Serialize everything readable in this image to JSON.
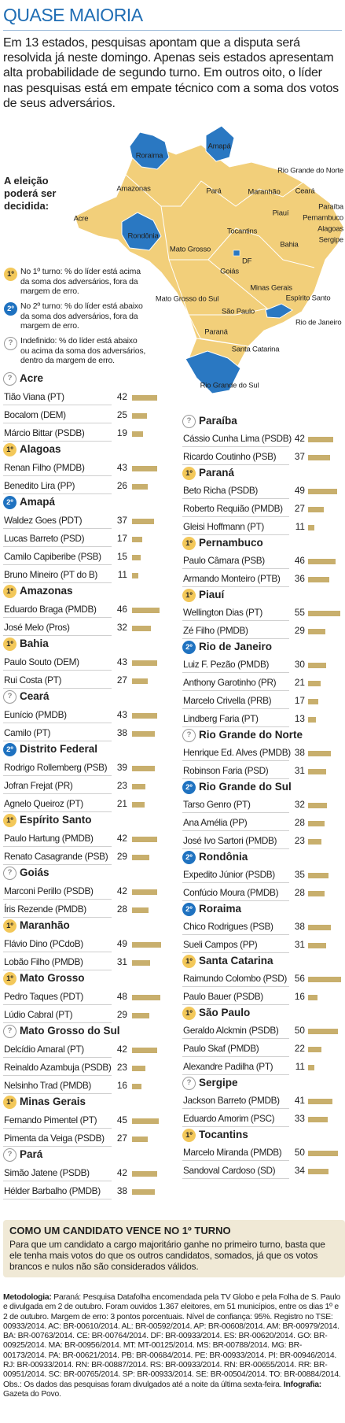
{
  "header": {
    "title": "QUASE MAIORIA",
    "intro": "Em 13 estados, pesquisas apontam que a disputa será resolvida já neste domingo. Apenas seis estados apresentam alta probabilidade de segundo turno. Em outros oito, o líder nas pesquisas está em empate técnico com a soma dos votos de seus adversários."
  },
  "legend_title": "A eleição poderá ser decidida:",
  "legend": [
    {
      "badge": "1º",
      "text": "No 1º turno: % do líder está acima da soma dos adversários, fora da margem de erro."
    },
    {
      "badge": "2º",
      "text": "No 2º turno: % do líder está abaixo da soma dos adversários, fora da margem de erro."
    },
    {
      "badge": "?",
      "text": "Indefinido: % do líder está abaixo ou acima da soma dos adversários, dentro da margem de erro."
    }
  ],
  "map": {
    "labels": [
      "Roraima",
      "Amapá",
      "Amazonas",
      "Pará",
      "Acre",
      "Rondônia",
      "Mato Grosso",
      "Maranhão",
      "Piauí",
      "Ceará",
      "Rio Grande do Norte",
      "Paraíba",
      "Pernambuco",
      "Alagoas",
      "Sergipe",
      "Tocantins",
      "Bahia",
      "Goiás",
      "DF",
      "Minas Gerais",
      "Espírito Santo",
      "Mato Grosso do Sul",
      "São Paulo",
      "Rio de Janeiro",
      "Paraná",
      "Santa Catarina",
      "Rio Grande do Sul"
    ]
  },
  "states": [
    {
      "name": "Acre",
      "round": "?",
      "candidates": [
        {
          "name": "Tião Viana (PT)",
          "value": 42
        },
        {
          "name": "Bocalom (DEM)",
          "value": 25
        },
        {
          "name": "Márcio Bittar (PSDB)",
          "value": 19
        }
      ]
    },
    {
      "name": "Alagoas",
      "round": "1º",
      "candidates": [
        {
          "name": "Renan Filho (PMDB)",
          "value": 43
        },
        {
          "name": "Benedito Lira (PP)",
          "value": 26
        }
      ]
    },
    {
      "name": "Amapá",
      "round": "2º",
      "candidates": [
        {
          "name": "Waldez Goes (PDT)",
          "value": 37
        },
        {
          "name": "Lucas Barreto (PSD)",
          "value": 17
        },
        {
          "name": "Camilo Capiberibe (PSB)",
          "value": 15
        },
        {
          "name": "Bruno Mineiro (PT do B)",
          "value": 11
        }
      ]
    },
    {
      "name": "Amazonas",
      "round": "1º",
      "candidates": [
        {
          "name": "Eduardo Braga (PMDB)",
          "value": 46
        },
        {
          "name": "José Melo (Pros)",
          "value": 32
        }
      ]
    },
    {
      "name": "Bahia",
      "round": "1º",
      "candidates": [
        {
          "name": "Paulo Souto (DEM)",
          "value": 43
        },
        {
          "name": "Rui Costa (PT)",
          "value": 27
        }
      ]
    },
    {
      "name": "Ceará",
      "round": "?",
      "candidates": [
        {
          "name": "Eunício (PMDB)",
          "value": 43
        },
        {
          "name": "Camilo (PT)",
          "value": 38
        }
      ]
    },
    {
      "name": "Distrito Federal",
      "round": "2º",
      "candidates": [
        {
          "name": "Rodrigo Rollemberg (PSB)",
          "value": 39
        },
        {
          "name": "Jofran Frejat (PR)",
          "value": 23
        },
        {
          "name": "Agnelo Queiroz (PT)",
          "value": 21
        }
      ]
    },
    {
      "name": "Espírito Santo",
      "round": "1º",
      "candidates": [
        {
          "name": "Paulo Hartung (PMDB)",
          "value": 42
        },
        {
          "name": "Renato Casagrande (PSB)",
          "value": 29
        }
      ]
    },
    {
      "name": "Goiás",
      "round": "?",
      "candidates": [
        {
          "name": "Marconi Perillo (PSDB)",
          "value": 42
        },
        {
          "name": "Íris Rezende (PMDB)",
          "value": 28
        }
      ]
    },
    {
      "name": "Maranhão",
      "round": "1º",
      "candidates": [
        {
          "name": "Flávio Dino (PCdoB)",
          "value": 49
        },
        {
          "name": "Lobão Filho (PMDB)",
          "value": 31
        }
      ]
    },
    {
      "name": "Mato Grosso",
      "round": "1º",
      "candidates": [
        {
          "name": "Pedro Taques (PDT)",
          "value": 48
        },
        {
          "name": "Lúdio Cabral (PT)",
          "value": 29
        }
      ]
    },
    {
      "name": "Mato Grosso do Sul",
      "round": "?",
      "candidates": [
        {
          "name": "Delcídio Amaral (PT)",
          "value": 42
        },
        {
          "name": "Reinaldo Azambuja (PSDB)",
          "value": 23
        },
        {
          "name": "Nelsinho Trad (PMDB)",
          "value": 16
        }
      ]
    },
    {
      "name": "Minas Gerais",
      "round": "1º",
      "candidates": [
        {
          "name": "Fernando Pimentel (PT)",
          "value": 45
        },
        {
          "name": "Pimenta da Veiga (PSDB)",
          "value": 27
        }
      ]
    },
    {
      "name": "Pará",
      "round": "?",
      "candidates": [
        {
          "name": "Simão Jatene (PSDB)",
          "value": 42
        },
        {
          "name": "Hélder Barbalho (PMDB)",
          "value": 38
        }
      ]
    },
    {
      "name": "Paraíba",
      "round": "?",
      "candidates": [
        {
          "name": "Cássio Cunha Lima (PSDB)",
          "value": 42
        },
        {
          "name": "Ricardo Coutinho (PSB)",
          "value": 37
        }
      ]
    },
    {
      "name": "Paraná",
      "round": "1º",
      "candidates": [
        {
          "name": "Beto Richa (PSDB)",
          "value": 49
        },
        {
          "name": "Roberto Requião (PMDB)",
          "value": 27
        },
        {
          "name": "Gleisi Hoffmann (PT)",
          "value": 11
        }
      ]
    },
    {
      "name": "Pernambuco",
      "round": "1º",
      "candidates": [
        {
          "name": "Paulo Câmara (PSB)",
          "value": 46
        },
        {
          "name": "Armando Monteiro (PTB)",
          "value": 36
        }
      ]
    },
    {
      "name": "Piauí",
      "round": "1º",
      "candidates": [
        {
          "name": "Wellington Dias (PT)",
          "value": 55
        },
        {
          "name": "Zé Filho (PMDB)",
          "value": 29
        }
      ]
    },
    {
      "name": "Rio de Janeiro",
      "round": "2º",
      "candidates": [
        {
          "name": "Luiz F. Pezão (PMDB)",
          "value": 30
        },
        {
          "name": "Anthony Garotinho (PR)",
          "value": 21
        },
        {
          "name": "Marcelo Crivella (PRB)",
          "value": 17
        },
        {
          "name": "Lindberg Faria (PT)",
          "value": 13
        }
      ]
    },
    {
      "name": "Rio Grande do Norte",
      "round": "?",
      "candidates": [
        {
          "name": "Henrique Ed. Alves (PMDB)",
          "value": 38
        },
        {
          "name": "Robinson Faria (PSD)",
          "value": 31
        }
      ]
    },
    {
      "name": "Rio Grande do Sul",
      "round": "2º",
      "candidates": [
        {
          "name": "Tarso Genro (PT)",
          "value": 32
        },
        {
          "name": "Ana Amélia (PP)",
          "value": 28
        },
        {
          "name": "José Ivo Sartori (PMDB)",
          "value": 23
        }
      ]
    },
    {
      "name": "Rondônia",
      "round": "2º",
      "candidates": [
        {
          "name": "Expedito Júnior (PSDB)",
          "value": 35
        },
        {
          "name": "Confúcio Moura (PMDB)",
          "value": 28
        }
      ]
    },
    {
      "name": "Roraima",
      "round": "2º",
      "candidates": [
        {
          "name": "Chico Rodrigues (PSB)",
          "value": 38
        },
        {
          "name": "Sueli Campos (PP)",
          "value": 31
        }
      ]
    },
    {
      "name": "Santa Catarina",
      "round": "1º",
      "candidates": [
        {
          "name": "Raimundo Colombo (PSD)",
          "value": 56
        },
        {
          "name": "Paulo Bauer (PSDB)",
          "value": 16
        }
      ]
    },
    {
      "name": "São Paulo",
      "round": "1º",
      "candidates": [
        {
          "name": "Geraldo Alckmin (PSDB)",
          "value": 50
        },
        {
          "name": "Paulo Skaf (PMDB)",
          "value": 22
        },
        {
          "name": "Alexandre Padilha (PT)",
          "value": 11
        }
      ]
    },
    {
      "name": "Sergipe",
      "round": "?",
      "candidates": [
        {
          "name": "Jackson Barreto (PMDB)",
          "value": 41
        },
        {
          "name": "Eduardo Amorim (PSC)",
          "value": 33
        }
      ]
    },
    {
      "name": "Tocantins",
      "round": "1º",
      "candidates": [
        {
          "name": "Marcelo Miranda (PMDB)",
          "value": 50
        },
        {
          "name": "Sandoval Cardoso (SD)",
          "value": 34
        }
      ]
    }
  ],
  "box": {
    "title": "COMO UM CANDIDATO VENCE NO 1º TURNO",
    "text": "Para que um candidato a cargo majoritário ganhe no primeiro turno, basta que ele tenha mais votos do que os outros candidatos, somados, já que os votos brancos e nulos não são considerados válidos."
  },
  "footer": {
    "method_label": "Metodologia:",
    "method_text": "Paraná: Pesquisa Datafolha encomendada pela TV Globo e pela Folha de S. Paulo e divulgada em 2 de outubro. Foram ouvidos 1.367 eleitores, em 51 municípios, entre os dias 1º e 2 de outubro. Margem de erro: 3 pontos porcentuais. Nível de confiança: 95%. Registro no TSE: 00933/2014. AC: BR-00610/2014. AL: BR-00592/2014. AP: BR-00608/2014. AM: BR-00979/2014. BA: BR-00763/2014. CE: BR-00764/2014. DF: BR-00933/2014. ES: BR-00620/2014. GO: BR-00925/2014. MA: BR-00956/2014. MT: MT-00125/2014. MS: BR-00788/2014. MG: BR-00173/2014. PA: BR-00621/2014. PB: BR-00684/2014. PE: BR-00933/2014. PI: BR-00946/2014. RJ: BR-00933/2014. RN: BR-00887/2014. RS: BR-00933/2014. RN: BR-00655/2014. RR: BR-00951/2014. SC: BR-00765/2014. SP: BR-00933/2014. SE: BR-00504/2014. TO: BR-00884/2014. Obs.: Os dados das pesquisas foram divulgados até a noite da última sexta-feira.",
    "credit_label": "Infografia:",
    "credit_text": "Gazeta do Povo."
  }
}
